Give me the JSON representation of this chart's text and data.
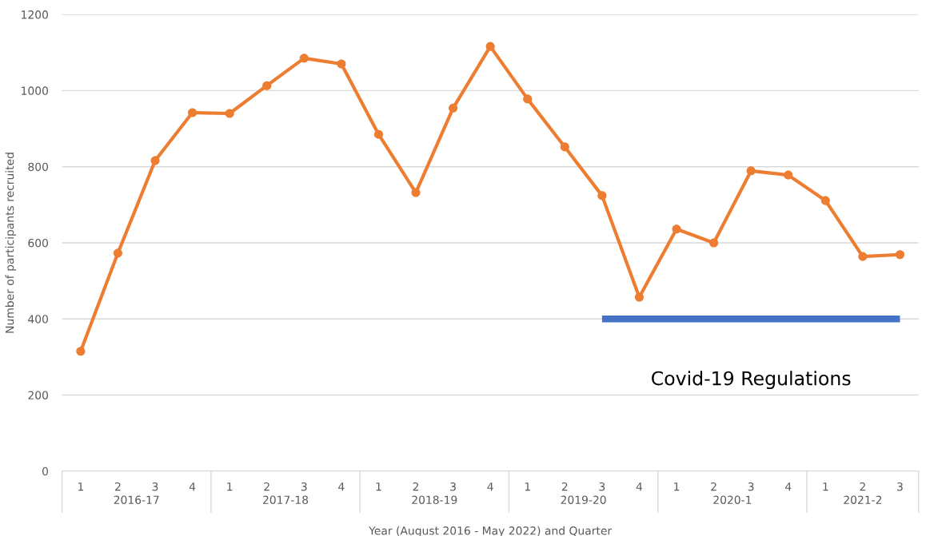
{
  "chart_data": {
    "type": "line",
    "xlabel": "Year (August 2016 - May 2022) and Quarter",
    "ylabel": "Number of participants recruited",
    "categories": [
      "1",
      "2",
      "3",
      "4",
      "1",
      "2",
      "3",
      "4",
      "1",
      "2",
      "3",
      "4",
      "1",
      "2",
      "3",
      "4",
      "1",
      "2",
      "3",
      "4",
      "1",
      "2",
      "3"
    ],
    "annotations": [
      "2016-17",
      "2017-18",
      "2018-19",
      "2019-20",
      "2020-1",
      "2021-2"
    ],
    "series": [
      {
        "color": "#ed7d31",
        "marker": "circle",
        "values": [
          315,
          573,
          816,
          942,
          940,
          1013,
          1085,
          1070,
          885,
          732,
          954,
          1116,
          978,
          852,
          724,
          457,
          636,
          600,
          789,
          778,
          711,
          564,
          569
        ]
      },
      {
        "name": "Covid-19 Regulations",
        "color": "#4472c4",
        "marker": "none",
        "values": [
          null,
          null,
          null,
          null,
          null,
          null,
          null,
          null,
          null,
          null,
          null,
          null,
          null,
          null,
          400,
          400,
          400,
          400,
          400,
          400,
          400,
          400,
          400
        ]
      }
    ],
    "ylim": [
      0,
      1200
    ],
    "yticks": [
      0,
      200,
      400,
      600,
      800,
      1000,
      1200
    ],
    "grid": "y",
    "legend": false
  }
}
